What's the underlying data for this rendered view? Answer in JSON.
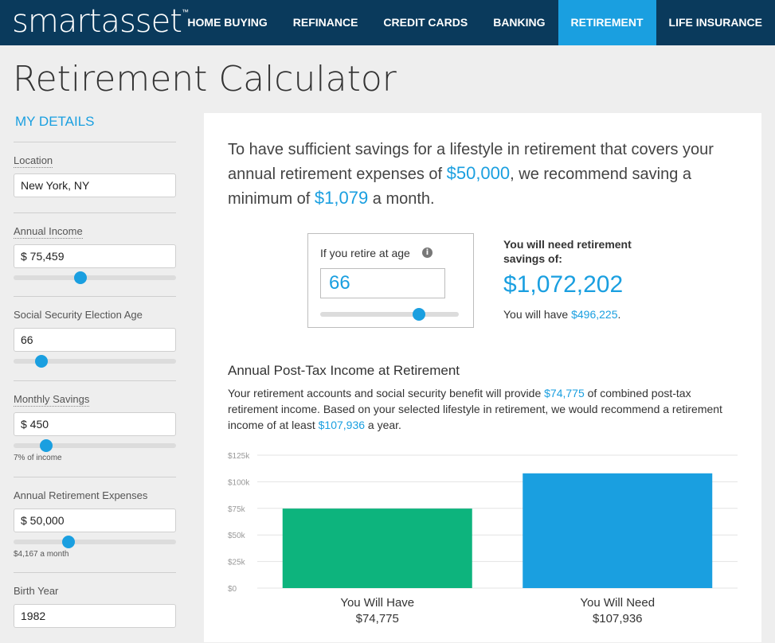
{
  "brand": {
    "name": "smartasset",
    "tm": "™"
  },
  "nav": {
    "items": [
      "HOME BUYING",
      "REFINANCE",
      "CREDIT CARDS",
      "BANKING",
      "RETIREMENT",
      "LIFE INSURANCE"
    ],
    "active": "RETIREMENT"
  },
  "page": {
    "title": "Retirement Calculator"
  },
  "sidebar": {
    "heading": "MY DETAILS",
    "location": {
      "label": "Location",
      "value": "New York, NY"
    },
    "annual_income": {
      "label": "Annual Income",
      "value": "$ 75,459",
      "slider_fraction": 0.41
    },
    "ss_age": {
      "label": "Social Security Election Age",
      "value": "66",
      "slider_fraction": 0.17
    },
    "monthly_savings": {
      "label": "Monthly Savings",
      "value": "$ 450",
      "slider_fraction": 0.2,
      "hint": "7% of income"
    },
    "retirement_expenses": {
      "label": "Annual Retirement Expenses",
      "value": "$ 50,000",
      "slider_fraction": 0.34,
      "hint": "$4,167 a month"
    },
    "birth_year": {
      "label": "Birth Year",
      "value": "1982"
    }
  },
  "summary": {
    "part1": "To have sufficient savings for a lifestyle in retirement that covers your annual retirement expenses of ",
    "expenses": "$50,000",
    "part2": ", we recommend saving a minimum of ",
    "monthly": "$1,079",
    "part3": " a month."
  },
  "retire_age": {
    "label": "If you retire at age",
    "info_icon": "i",
    "value": "66",
    "slider_fraction": 0.71
  },
  "need": {
    "title": "You will need retirement savings of:",
    "amount": "$1,072,202",
    "have_prefix": "You will have ",
    "have_amount": "$496,225",
    "have_suffix": "."
  },
  "income_section": {
    "title": "Annual Post-Tax Income at Retirement",
    "text1": "Your retirement accounts and social security benefit will provide ",
    "provide": "$74,775",
    "text2": " of combined post-tax retirement income. Based on your selected lifestyle in retirement, we would recommend a retirement income of at least ",
    "recommend": "$107,936",
    "text3": " a year."
  },
  "chart_data": {
    "type": "bar",
    "categories": [
      "You Will Have",
      "You Will Need"
    ],
    "values": [
      74775,
      107936
    ],
    "value_labels": [
      "$74,775",
      "$107,936"
    ],
    "colors": [
      "#0db47d",
      "#1a9fe0"
    ],
    "ylim": [
      0,
      125000
    ],
    "yticks": [
      0,
      25000,
      50000,
      75000,
      100000,
      125000
    ],
    "ytick_labels": [
      "$0",
      "$25k",
      "$50k",
      "$75k",
      "$100k",
      "$125k"
    ],
    "grid": true
  }
}
